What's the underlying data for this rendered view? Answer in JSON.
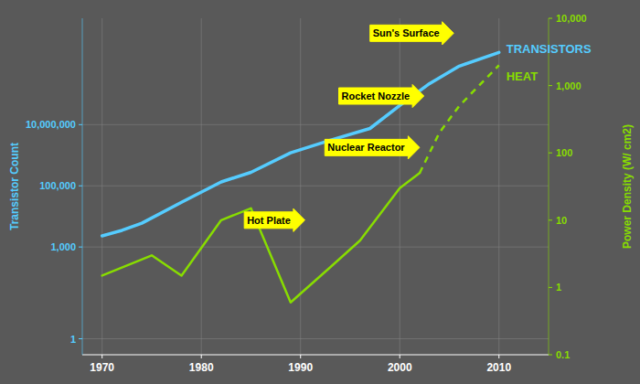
{
  "chart_data": {
    "type": "line",
    "log": "y",
    "grid": true,
    "xlim": [
      1968,
      2015
    ],
    "xticks": [
      1970,
      1980,
      1990,
      2000,
      2010
    ],
    "ylim": [
      0.3,
      30000000000
    ],
    "yticks": [
      1,
      {
        "value": 1000,
        "label": "1,000"
      },
      {
        "value": 100000,
        "label": "100,000"
      },
      {
        "value": 10000000,
        "label": "10,000,000"
      }
    ],
    "y2lim": [
      0.1,
      10000
    ],
    "y2ticks": [
      0.1,
      1,
      10,
      100,
      {
        "value": 1000,
        "label": "1,000"
      },
      {
        "value": 10000,
        "label": "10,000"
      }
    ],
    "y_label": "Transistor Count",
    "y2_label": "Power Density (W/ cm2)",
    "series": [
      {
        "name": "TRANSISTORS",
        "color": "#55CCFF",
        "line_style": "solid",
        "x": [
          1970,
          1972,
          1974,
          1978,
          1982,
          1985,
          1989,
          1993,
          1997,
          2000,
          2003,
          2006,
          2010
        ],
        "values": [
          2300,
          3500,
          6000,
          29000,
          134000,
          275000,
          1200000,
          3100000,
          7500000,
          42000000,
          220000000,
          820000000,
          2300000000
        ]
      },
      {
        "name": "HEAT",
        "color": "#88DD00",
        "axis": "y2",
        "line_style": "solid",
        "x": [
          1970,
          1975,
          1978,
          1982,
          1985,
          1989,
          1993,
          1996,
          2000,
          2002
        ],
        "values": [
          1.5,
          3.0,
          1.5,
          10,
          15,
          0.6,
          2.0,
          5.0,
          30,
          50
        ]
      },
      {
        "color": "#88DD00",
        "axis": "y2",
        "line_style": "dashed",
        "x": [
          2002,
          2004,
          2006,
          2008,
          2010
        ],
        "values": [
          50,
          200,
          500,
          1000,
          2000
        ]
      }
    ],
    "annotations": [
      {
        "text": "Sun's Surface",
        "x": 2004,
        "y": 6000,
        "axis": "y2",
        "color": "#FFFF00"
      },
      {
        "text": "Rocket Nozzle",
        "x": 2001,
        "y": 700,
        "axis": "y2",
        "color": "#FFFF00"
      },
      {
        "text": "Nuclear Reactor",
        "x": 2000.5,
        "y": 120,
        "axis": "y2",
        "color": "#FFFF00"
      },
      {
        "text": "Hot Plate",
        "x": 1989,
        "y": 10,
        "axis": "y2",
        "color": "#FFFF00"
      }
    ]
  }
}
